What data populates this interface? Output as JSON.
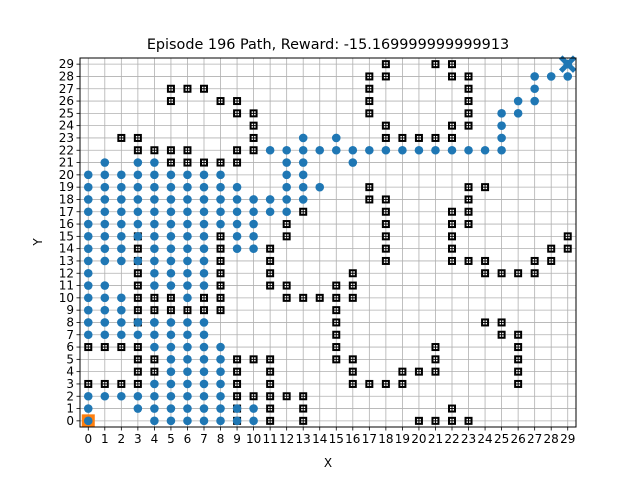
{
  "chart_data": {
    "type": "scatter",
    "title": "Episode 196 Path, Reward: -15.169999999999913",
    "xlabel": "X",
    "ylabel": "Y",
    "xlim": [
      -0.5,
      29.5
    ],
    "ylim": [
      -0.5,
      29.5
    ],
    "xticks": [
      0,
      1,
      2,
      3,
      4,
      5,
      6,
      7,
      8,
      9,
      10,
      11,
      12,
      13,
      14,
      15,
      16,
      17,
      18,
      19,
      20,
      21,
      22,
      23,
      24,
      25,
      26,
      27,
      28,
      29
    ],
    "yticks": [
      0,
      1,
      2,
      3,
      4,
      5,
      6,
      7,
      8,
      9,
      10,
      11,
      12,
      13,
      14,
      15,
      16,
      17,
      18,
      19,
      20,
      21,
      22,
      23,
      24,
      25,
      26,
      27,
      28,
      29
    ],
    "grid": true,
    "colors": {
      "path": "#1f77b4",
      "start": "#ff7f0e",
      "goal": "#1f77b4",
      "obstacle": "#000000",
      "grid": "#b0b0b0"
    },
    "start": [
      0,
      0
    ],
    "goal": [
      29,
      29
    ],
    "obstacles": [
      [
        0,
        3
      ],
      [
        1,
        3
      ],
      [
        2,
        3
      ],
      [
        3,
        3
      ],
      [
        3,
        4
      ],
      [
        3,
        5
      ],
      [
        4,
        4
      ],
      [
        4,
        5
      ],
      [
        0,
        6
      ],
      [
        1,
        6
      ],
      [
        2,
        6
      ],
      [
        3,
        6
      ],
      [
        3,
        8
      ],
      [
        3,
        9
      ],
      [
        3,
        10
      ],
      [
        3,
        11
      ],
      [
        3,
        12
      ],
      [
        3,
        13
      ],
      [
        3,
        14
      ],
      [
        3,
        15
      ],
      [
        4,
        9
      ],
      [
        4,
        10
      ],
      [
        5,
        9
      ],
      [
        5,
        10
      ],
      [
        6,
        9
      ],
      [
        7,
        9
      ],
      [
        7,
        10
      ],
      [
        8,
        9
      ],
      [
        8,
        10
      ],
      [
        8,
        11
      ],
      [
        8,
        12
      ],
      [
        8,
        13
      ],
      [
        8,
        14
      ],
      [
        8,
        15
      ],
      [
        2,
        23
      ],
      [
        3,
        23
      ],
      [
        3,
        22
      ],
      [
        4,
        22
      ],
      [
        5,
        22
      ],
      [
        6,
        22
      ],
      [
        5,
        21
      ],
      [
        6,
        21
      ],
      [
        7,
        21
      ],
      [
        8,
        21
      ],
      [
        9,
        21
      ],
      [
        9,
        22
      ],
      [
        10,
        22
      ],
      [
        10,
        23
      ],
      [
        10,
        24
      ],
      [
        10,
        25
      ],
      [
        5,
        26
      ],
      [
        5,
        27
      ],
      [
        6,
        27
      ],
      [
        7,
        27
      ],
      [
        8,
        26
      ],
      [
        9,
        26
      ],
      [
        9,
        25
      ],
      [
        11,
        11
      ],
      [
        11,
        12
      ],
      [
        11,
        13
      ],
      [
        11,
        14
      ],
      [
        12,
        15
      ],
      [
        12,
        16
      ],
      [
        13,
        17
      ],
      [
        12,
        10
      ],
      [
        12,
        11
      ],
      [
        13,
        10
      ],
      [
        14,
        10
      ],
      [
        15,
        10
      ],
      [
        15,
        11
      ],
      [
        16,
        11
      ],
      [
        16,
        12
      ],
      [
        16,
        10
      ],
      [
        15,
        9
      ],
      [
        15,
        8
      ],
      [
        15,
        7
      ],
      [
        15,
        6
      ],
      [
        15,
        5
      ],
      [
        16,
        5
      ],
      [
        16,
        4
      ],
      [
        16,
        3
      ],
      [
        17,
        3
      ],
      [
        18,
        3
      ],
      [
        19,
        3
      ],
      [
        19,
        4
      ],
      [
        20,
        4
      ],
      [
        21,
        4
      ],
      [
        21,
        5
      ],
      [
        21,
        6
      ],
      [
        9,
        0
      ],
      [
        9,
        1
      ],
      [
        9,
        2
      ],
      [
        9,
        3
      ],
      [
        9,
        4
      ],
      [
        9,
        5
      ],
      [
        10,
        5
      ],
      [
        10,
        2
      ],
      [
        11,
        0
      ],
      [
        11,
        1
      ],
      [
        11,
        2
      ],
      [
        11,
        3
      ],
      [
        11,
        4
      ],
      [
        11,
        5
      ],
      [
        12,
        2
      ],
      [
        13,
        2
      ],
      [
        13,
        1
      ],
      [
        13,
        0
      ],
      [
        17,
        18
      ],
      [
        17,
        19
      ],
      [
        18,
        13
      ],
      [
        18,
        14
      ],
      [
        18,
        15
      ],
      [
        18,
        16
      ],
      [
        18,
        17
      ],
      [
        18,
        18
      ],
      [
        17,
        25
      ],
      [
        17,
        26
      ],
      [
        17,
        27
      ],
      [
        17,
        28
      ],
      [
        18,
        28
      ],
      [
        18,
        29
      ],
      [
        18,
        24
      ],
      [
        18,
        23
      ],
      [
        19,
        23
      ],
      [
        20,
        23
      ],
      [
        21,
        23
      ],
      [
        22,
        23
      ],
      [
        22,
        24
      ],
      [
        23,
        24
      ],
      [
        21,
        29
      ],
      [
        22,
        29
      ],
      [
        22,
        28
      ],
      [
        23,
        28
      ],
      [
        23,
        27
      ],
      [
        23,
        26
      ],
      [
        23,
        25
      ],
      [
        22,
        13
      ],
      [
        22,
        14
      ],
      [
        22,
        15
      ],
      [
        22,
        16
      ],
      [
        22,
        17
      ],
      [
        23,
        18
      ],
      [
        23,
        19
      ],
      [
        23,
        17
      ],
      [
        23,
        16
      ],
      [
        24,
        19
      ],
      [
        23,
        13
      ],
      [
        24,
        13
      ],
      [
        24,
        12
      ],
      [
        25,
        12
      ],
      [
        26,
        12
      ],
      [
        27,
        12
      ],
      [
        27,
        13
      ],
      [
        28,
        13
      ],
      [
        28,
        14
      ],
      [
        29,
        14
      ],
      [
        29,
        15
      ],
      [
        24,
        8
      ],
      [
        25,
        8
      ],
      [
        25,
        7
      ],
      [
        26,
        7
      ],
      [
        26,
        6
      ],
      [
        26,
        5
      ],
      [
        26,
        4
      ],
      [
        26,
        3
      ],
      [
        20,
        0
      ],
      [
        21,
        0
      ],
      [
        22,
        0
      ],
      [
        22,
        1
      ],
      [
        23,
        0
      ]
    ],
    "path": [
      [
        0,
        0
      ],
      [
        0,
        1
      ],
      [
        0,
        2
      ],
      [
        1,
        2
      ],
      [
        2,
        2
      ],
      [
        3,
        2
      ],
      [
        3,
        1
      ],
      [
        4,
        1
      ],
      [
        4,
        0
      ],
      [
        5,
        0
      ],
      [
        6,
        0
      ],
      [
        7,
        0
      ],
      [
        8,
        0
      ],
      [
        9,
        0
      ],
      [
        10,
        0
      ],
      [
        10,
        1
      ],
      [
        9,
        1
      ],
      [
        8,
        1
      ],
      [
        7,
        1
      ],
      [
        6,
        1
      ],
      [
        5,
        1
      ],
      [
        4,
        2
      ],
      [
        5,
        2
      ],
      [
        6,
        2
      ],
      [
        7,
        2
      ],
      [
        8,
        2
      ],
      [
        8,
        3
      ],
      [
        7,
        3
      ],
      [
        6,
        3
      ],
      [
        5,
        3
      ],
      [
        4,
        3
      ],
      [
        5,
        4
      ],
      [
        6,
        4
      ],
      [
        7,
        4
      ],
      [
        8,
        4
      ],
      [
        8,
        5
      ],
      [
        7,
        5
      ],
      [
        6,
        5
      ],
      [
        5,
        5
      ],
      [
        5,
        6
      ],
      [
        6,
        6
      ],
      [
        7,
        6
      ],
      [
        8,
        6
      ],
      [
        7,
        7
      ],
      [
        6,
        7
      ],
      [
        5,
        7
      ],
      [
        4,
        7
      ],
      [
        4,
        6
      ],
      [
        4,
        8
      ],
      [
        3,
        7
      ],
      [
        2,
        7
      ],
      [
        1,
        7
      ],
      [
        0,
        7
      ],
      [
        0,
        8
      ],
      [
        0,
        9
      ],
      [
        1,
        9
      ],
      [
        2,
        9
      ],
      [
        1,
        8
      ],
      [
        2,
        8
      ],
      [
        3,
        8
      ],
      [
        4,
        8
      ],
      [
        5,
        8
      ],
      [
        6,
        8
      ],
      [
        7,
        8
      ],
      [
        2,
        10
      ],
      [
        1,
        10
      ],
      [
        0,
        10
      ],
      [
        0,
        11
      ],
      [
        1,
        11
      ],
      [
        0,
        12
      ],
      [
        0,
        13
      ],
      [
        1,
        13
      ],
      [
        2,
        13
      ],
      [
        3,
        13
      ],
      [
        0,
        14
      ],
      [
        1,
        14
      ],
      [
        2,
        14
      ],
      [
        0,
        15
      ],
      [
        1,
        15
      ],
      [
        2,
        15
      ],
      [
        3,
        15
      ],
      [
        0,
        16
      ],
      [
        1,
        16
      ],
      [
        2,
        16
      ],
      [
        3,
        16
      ],
      [
        4,
        11
      ],
      [
        5,
        11
      ],
      [
        6,
        11
      ],
      [
        7,
        11
      ],
      [
        4,
        12
      ],
      [
        5,
        12
      ],
      [
        6,
        12
      ],
      [
        7,
        12
      ],
      [
        4,
        13
      ],
      [
        5,
        13
      ],
      [
        6,
        13
      ],
      [
        7,
        13
      ],
      [
        4,
        14
      ],
      [
        5,
        14
      ],
      [
        6,
        14
      ],
      [
        7,
        14
      ],
      [
        4,
        15
      ],
      [
        5,
        15
      ],
      [
        6,
        15
      ],
      [
        7,
        15
      ],
      [
        4,
        16
      ],
      [
        5,
        16
      ],
      [
        6,
        16
      ],
      [
        7,
        16
      ],
      [
        8,
        16
      ],
      [
        9,
        16
      ],
      [
        10,
        16
      ],
      [
        10,
        15
      ],
      [
        10,
        14
      ],
      [
        9,
        14
      ],
      [
        9,
        15
      ],
      [
        6,
        10
      ],
      [
        0,
        17
      ],
      [
        1,
        17
      ],
      [
        2,
        17
      ],
      [
        3,
        17
      ],
      [
        4,
        17
      ],
      [
        5,
        17
      ],
      [
        6,
        17
      ],
      [
        7,
        17
      ],
      [
        8,
        17
      ],
      [
        9,
        17
      ],
      [
        10,
        17
      ],
      [
        11,
        17
      ],
      [
        12,
        17
      ],
      [
        0,
        18
      ],
      [
        1,
        18
      ],
      [
        2,
        18
      ],
      [
        3,
        18
      ],
      [
        4,
        18
      ],
      [
        5,
        18
      ],
      [
        6,
        18
      ],
      [
        7,
        18
      ],
      [
        8,
        18
      ],
      [
        9,
        18
      ],
      [
        10,
        18
      ],
      [
        11,
        18
      ],
      [
        12,
        18
      ],
      [
        13,
        18
      ],
      [
        0,
        19
      ],
      [
        1,
        19
      ],
      [
        2,
        19
      ],
      [
        3,
        19
      ],
      [
        4,
        19
      ],
      [
        5,
        19
      ],
      [
        6,
        19
      ],
      [
        7,
        19
      ],
      [
        8,
        19
      ],
      [
        9,
        19
      ],
      [
        0,
        20
      ],
      [
        1,
        20
      ],
      [
        2,
        20
      ],
      [
        3,
        20
      ],
      [
        4,
        20
      ],
      [
        5,
        20
      ],
      [
        6,
        20
      ],
      [
        7,
        20
      ],
      [
        8,
        20
      ],
      [
        1,
        21
      ],
      [
        3,
        21
      ],
      [
        4,
        21
      ],
      [
        12,
        19
      ],
      [
        13,
        19
      ],
      [
        14,
        19
      ],
      [
        12,
        20
      ],
      [
        13,
        20
      ],
      [
        12,
        21
      ],
      [
        13,
        21
      ],
      [
        11,
        22
      ],
      [
        12,
        22
      ],
      [
        13,
        22
      ],
      [
        13,
        23
      ],
      [
        14,
        22
      ],
      [
        15,
        22
      ],
      [
        15,
        23
      ],
      [
        16,
        22
      ],
      [
        16,
        21
      ],
      [
        17,
        22
      ],
      [
        18,
        22
      ],
      [
        19,
        22
      ],
      [
        20,
        22
      ],
      [
        21,
        22
      ],
      [
        22,
        22
      ],
      [
        23,
        22
      ],
      [
        24,
        22
      ],
      [
        25,
        22
      ],
      [
        25,
        23
      ],
      [
        25,
        24
      ],
      [
        25,
        25
      ],
      [
        26,
        25
      ],
      [
        26,
        26
      ],
      [
        27,
        26
      ],
      [
        27,
        27
      ],
      [
        27,
        28
      ],
      [
        28,
        28
      ],
      [
        29,
        28
      ],
      [
        29,
        29
      ]
    ]
  }
}
